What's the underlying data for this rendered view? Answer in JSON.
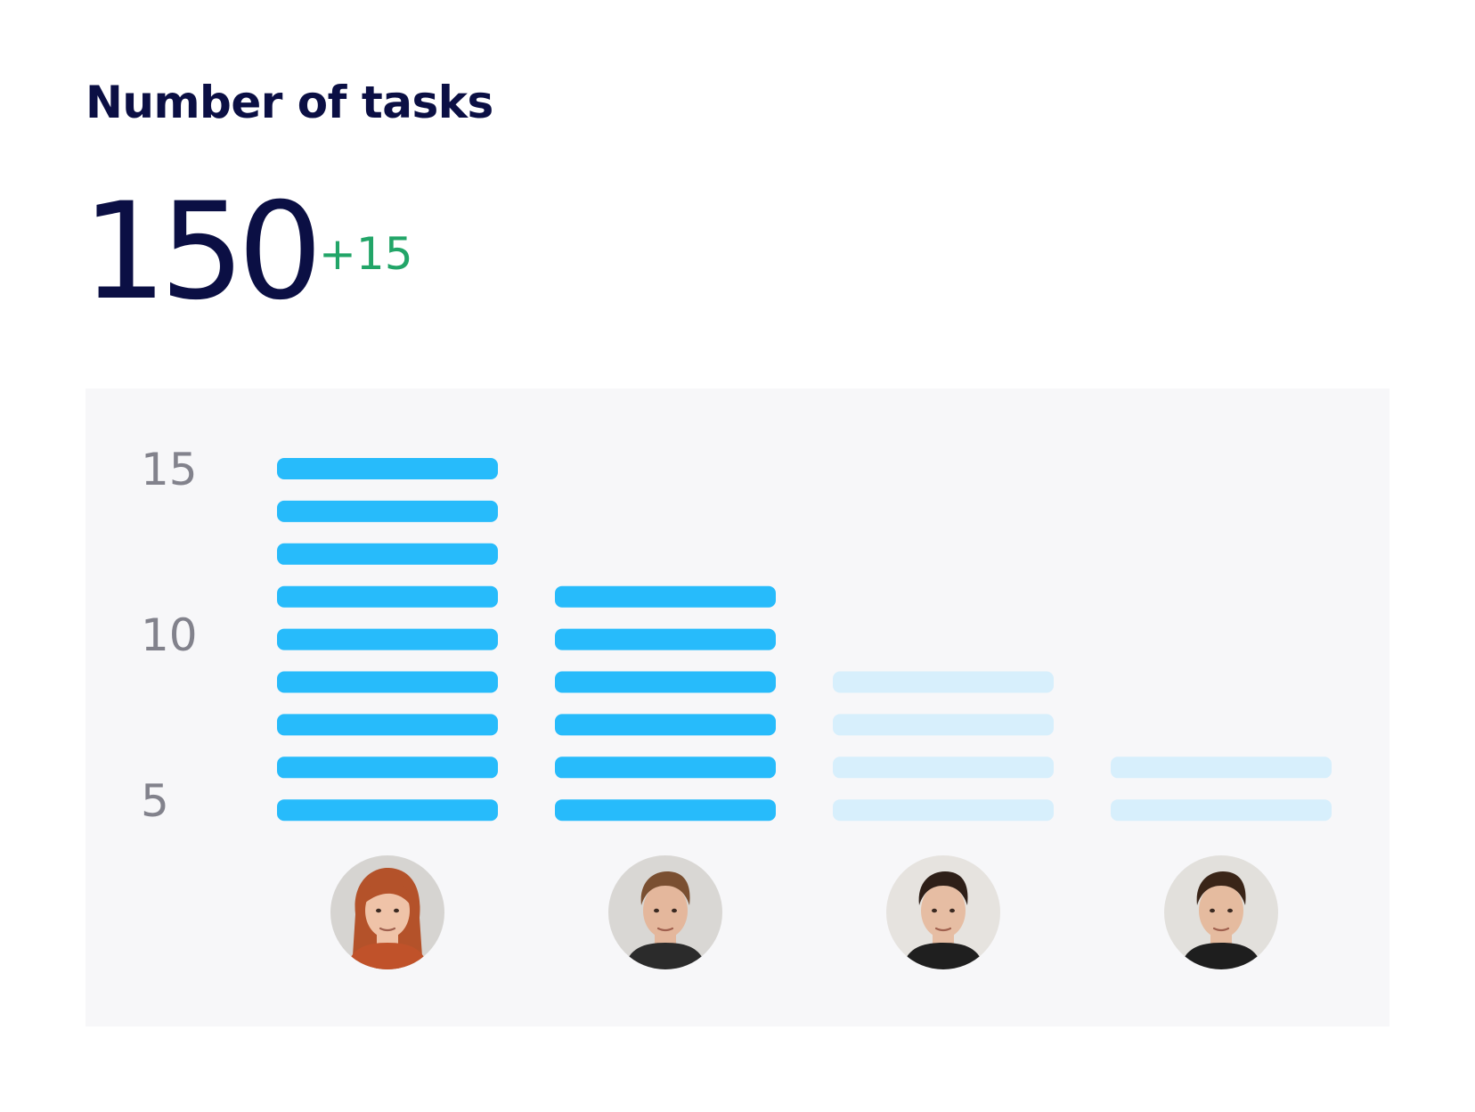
{
  "header": {
    "title": "Number of tasks",
    "value": "150",
    "delta": "+15"
  },
  "colors": {
    "title": "#0b0f44",
    "delta": "#22a568",
    "bar_active": "#27bbfb",
    "bar_inactive": "#d7effc",
    "panel": "#f7f7f9",
    "tick": "#82828c"
  },
  "chart_data": {
    "type": "bar",
    "style": "stacked-segments",
    "y_ticks": [
      "15",
      "10",
      "5"
    ],
    "y_tick_values": [
      15,
      10,
      5
    ],
    "segment_y_values": [
      15,
      14,
      13,
      12,
      11,
      10,
      9,
      8,
      7
    ],
    "categories": [
      "person-1",
      "person-2",
      "person-3",
      "person-4"
    ],
    "values": [
      9,
      6,
      4,
      2
    ],
    "highlighted": [
      true,
      true,
      false,
      false
    ]
  },
  "avatars": [
    {
      "label": "person-1",
      "hair": "#b4522a",
      "skin": "#efc3a8",
      "bg": "#d6d4d1",
      "shirt": "#c0522a"
    },
    {
      "label": "person-2",
      "hair": "#7a4f31",
      "skin": "#e4b79c",
      "bg": "#d9d7d4",
      "shirt": "#2b2b2b"
    },
    {
      "label": "person-3",
      "hair": "#2e1f18",
      "skin": "#e6bda3",
      "bg": "#e6e3df",
      "shirt": "#1f1f1f"
    },
    {
      "label": "person-4",
      "hair": "#3a2518",
      "skin": "#e5bb9f",
      "bg": "#e2e0dc",
      "shirt": "#1e1e1e"
    }
  ]
}
